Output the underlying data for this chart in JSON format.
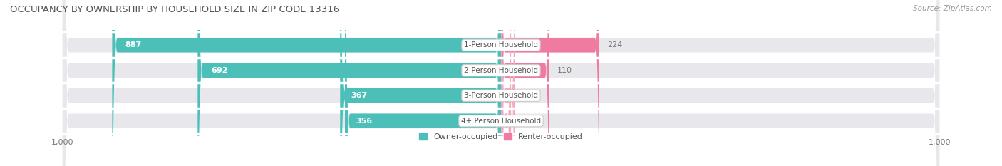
{
  "title": "OCCUPANCY BY OWNERSHIP BY HOUSEHOLD SIZE IN ZIP CODE 13316",
  "source": "Source: ZipAtlas.com",
  "categories": [
    "1-Person Household",
    "2-Person Household",
    "3-Person Household",
    "4+ Person Household"
  ],
  "owner_values": [
    887,
    692,
    367,
    356
  ],
  "renter_values": [
    224,
    110,
    32,
    23
  ],
  "owner_color": "#4BBFB8",
  "renter_color": "#F07BA0",
  "renter_color_light": "#F5A8C0",
  "bar_bg_color": "#E8E8EC",
  "owner_text_color_inside": "#FFFFFF",
  "owner_text_color_outside": "#777777",
  "renter_text_color": "#777777",
  "cat_text_color": "#555555",
  "title_color": "#555555",
  "source_color": "#999999",
  "axis_tick_color": "#777777",
  "axis_max": 1000,
  "legend_owner": "Owner-occupied",
  "legend_renter": "Renter-occupied",
  "title_fontsize": 9.5,
  "source_fontsize": 7.5,
  "bar_label_fontsize": 8,
  "cat_label_fontsize": 7.5,
  "axis_label_fontsize": 8,
  "figsize": [
    14.06,
    2.33
  ],
  "dpi": 100
}
